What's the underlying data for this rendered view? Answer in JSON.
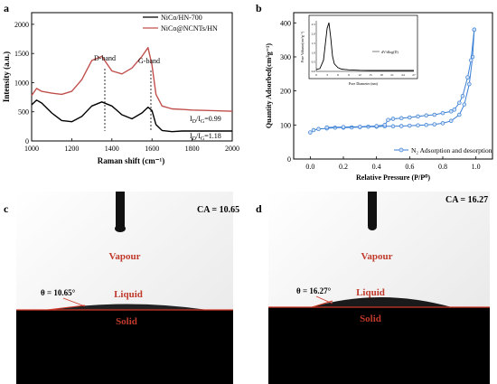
{
  "panels": {
    "a": "a",
    "b": "b",
    "c": "c",
    "d": "d"
  },
  "chart_data": [
    {
      "panel": "a",
      "type": "line",
      "xlabel": "Raman shift (cm⁻¹)",
      "ylabel": "Intensity (a.u.)",
      "xlim": [
        1000,
        2000
      ],
      "ylim": [
        0,
        2200
      ],
      "x_ticks": [
        "1000",
        "1200",
        "1400",
        "1600",
        "1800",
        "2000"
      ],
      "y_ticks": [
        "0",
        "500",
        "1000",
        "1500",
        "2000"
      ],
      "legend": [
        "NiCo/HN-700",
        "NiCo@NCNTs/HN"
      ],
      "legend_position": "top-right",
      "series": [
        {
          "name": "NiCo/HN-700",
          "color": "#000000",
          "x": [
            1000,
            1025,
            1050,
            1100,
            1150,
            1200,
            1250,
            1300,
            1350,
            1400,
            1450,
            1500,
            1550,
            1580,
            1600,
            1620,
            1650,
            1700,
            1750,
            1800,
            1900,
            2000
          ],
          "y": [
            620,
            700,
            650,
            480,
            350,
            330,
            420,
            600,
            670,
            600,
            450,
            380,
            480,
            580,
            520,
            280,
            180,
            160,
            170,
            170,
            170,
            170
          ]
        },
        {
          "name": "NiCo@NCNTs/HN",
          "color": "#c0504d",
          "x": [
            1000,
            1025,
            1050,
            1100,
            1150,
            1200,
            1250,
            1300,
            1350,
            1400,
            1450,
            1500,
            1550,
            1580,
            1600,
            1620,
            1650,
            1700,
            1750,
            1800,
            1900,
            2000
          ],
          "y": [
            780,
            900,
            850,
            820,
            800,
            850,
            1050,
            1380,
            1450,
            1200,
            1150,
            1250,
            1450,
            1600,
            1300,
            800,
            600,
            550,
            540,
            530,
            520,
            510
          ]
        }
      ],
      "annotations": {
        "d_band": "D-band",
        "g_band": "G-band",
        "ratio_1": "I<sub>D</sub>/I<sub>G</sub>=0.99",
        "ratio_2": "I<sub>D</sub>/I<sub>G</sub>=1.18"
      }
    },
    {
      "panel": "b",
      "type": "line",
      "xlabel": "Relative Pressure (P/P⁰)",
      "ylabel": "Quantity Adsorbed(cm³g⁻¹)",
      "xlim": [
        -0.1,
        1.1
      ],
      "ylim": [
        0,
        430
      ],
      "x_ticks": [
        "0.0",
        "0.2",
        "0.4",
        "0.6",
        "0.8",
        "1.0"
      ],
      "y_ticks": [
        "0",
        "100",
        "200",
        "300",
        "400"
      ],
      "legend": [
        "N₂ Adsorption and desorption"
      ],
      "legend_position": "bottom-right",
      "series": [
        {
          "name": "adsorption",
          "color": "#3a7fd5",
          "x": [
            0.0,
            0.02,
            0.05,
            0.1,
            0.15,
            0.2,
            0.25,
            0.3,
            0.35,
            0.4,
            0.45,
            0.5,
            0.55,
            0.6,
            0.65,
            0.7,
            0.75,
            0.8,
            0.85,
            0.9,
            0.93,
            0.96,
            0.98,
            0.99
          ],
          "y": [
            78,
            85,
            88,
            90,
            92,
            92,
            93,
            94,
            95,
            95,
            96,
            96,
            97,
            98,
            99,
            100,
            102,
            105,
            112,
            130,
            160,
            220,
            300,
            380
          ]
        },
        {
          "name": "desorption",
          "color": "#3a7fd5",
          "x": [
            0.99,
            0.97,
            0.95,
            0.92,
            0.9,
            0.87,
            0.85,
            0.8,
            0.75,
            0.7,
            0.65,
            0.6,
            0.55,
            0.5,
            0.47,
            0.45,
            0.4,
            0.3,
            0.2,
            0.1
          ],
          "y": [
            380,
            290,
            240,
            185,
            165,
            145,
            140,
            135,
            130,
            128,
            125,
            122,
            120,
            118,
            115,
            100,
            97,
            95,
            94,
            93
          ]
        }
      ],
      "inset": {
        "xlabel": "Pore Diameter (nm)",
        "ylabel": "Pore Volume(cm³g⁻¹)",
        "legend": "dV/dlog(D)",
        "xlim": [
          0,
          27
        ],
        "ylim": [
          0,
          2.7
        ],
        "x_ticks": [
          "0",
          "3",
          "6",
          "9",
          "12",
          "15",
          "18",
          "21",
          "24",
          "27"
        ],
        "y_ticks": [
          "0.0",
          "0.5",
          "1.0",
          "1.5",
          "2.0",
          "2.5"
        ],
        "x": [
          0,
          1,
          2,
          3,
          3.5,
          4,
          4.5,
          5,
          6,
          7,
          9,
          12,
          15,
          18,
          21,
          24,
          27
        ],
        "y": [
          0.1,
          0.15,
          0.6,
          2.3,
          2.6,
          1.8,
          0.8,
          0.4,
          0.2,
          0.12,
          0.08,
          0.06,
          0.05,
          0.05,
          0.05,
          0.05,
          0.05
        ]
      }
    }
  ],
  "photos": {
    "c": {
      "ca_label": "CA = 10.65",
      "vapour": "Vapour",
      "liquid": "Liquid",
      "solid": "Solid",
      "theta": "θ = 10.65°"
    },
    "d": {
      "ca_label": "CA = 16.27",
      "vapour": "Vapour",
      "liquid": "Liquid",
      "solid": "Solid",
      "theta": "θ = 16.27°"
    }
  }
}
